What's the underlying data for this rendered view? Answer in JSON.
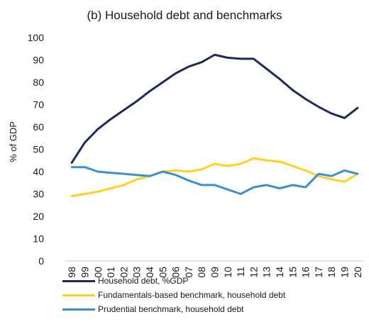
{
  "chart_data": {
    "type": "line",
    "title": "(b) Household debt and benchmarks",
    "xlabel": "",
    "ylabel": "% of GDP",
    "ylim": [
      0,
      100
    ],
    "yticks": [
      0,
      10,
      20,
      30,
      40,
      50,
      60,
      70,
      80,
      90,
      100
    ],
    "grid": false,
    "legend_placement": "bottom",
    "categories": [
      "98",
      "99",
      "00",
      "01",
      "02",
      "03",
      "04",
      "05",
      "06",
      "07",
      "08",
      "09",
      "10",
      "11",
      "12",
      "13",
      "14",
      "15",
      "16",
      "17",
      "18",
      "19",
      "20"
    ],
    "series": [
      {
        "name": "Household debt, %GDP",
        "color": "#1f2a5c",
        "values": [
          44,
          53,
          59,
          63.5,
          67.5,
          71.5,
          76,
          80,
          84,
          87,
          89,
          92.3,
          91,
          90.5,
          90.5,
          86,
          81.5,
          76.5,
          72.5,
          69,
          66,
          64,
          68.5
        ]
      },
      {
        "name": "Fundamentals-based benchmark, household debt",
        "color": "#ffd21f",
        "values": [
          29,
          30,
          31,
          32.5,
          34,
          36.5,
          38,
          40,
          40.5,
          40,
          41,
          43.5,
          42.5,
          43.5,
          46,
          45,
          44.5,
          42.5,
          40.5,
          38,
          36.5,
          35.5,
          39
        ]
      },
      {
        "name": "Prudential benchmark, household debt",
        "color": "#3b8fd0",
        "values": [
          42,
          42,
          40,
          39.5,
          39,
          38.5,
          38,
          40,
          38.5,
          36,
          34,
          34,
          32,
          30,
          33,
          34,
          32.5,
          34,
          33,
          39,
          38,
          40.5,
          39
        ]
      }
    ]
  }
}
